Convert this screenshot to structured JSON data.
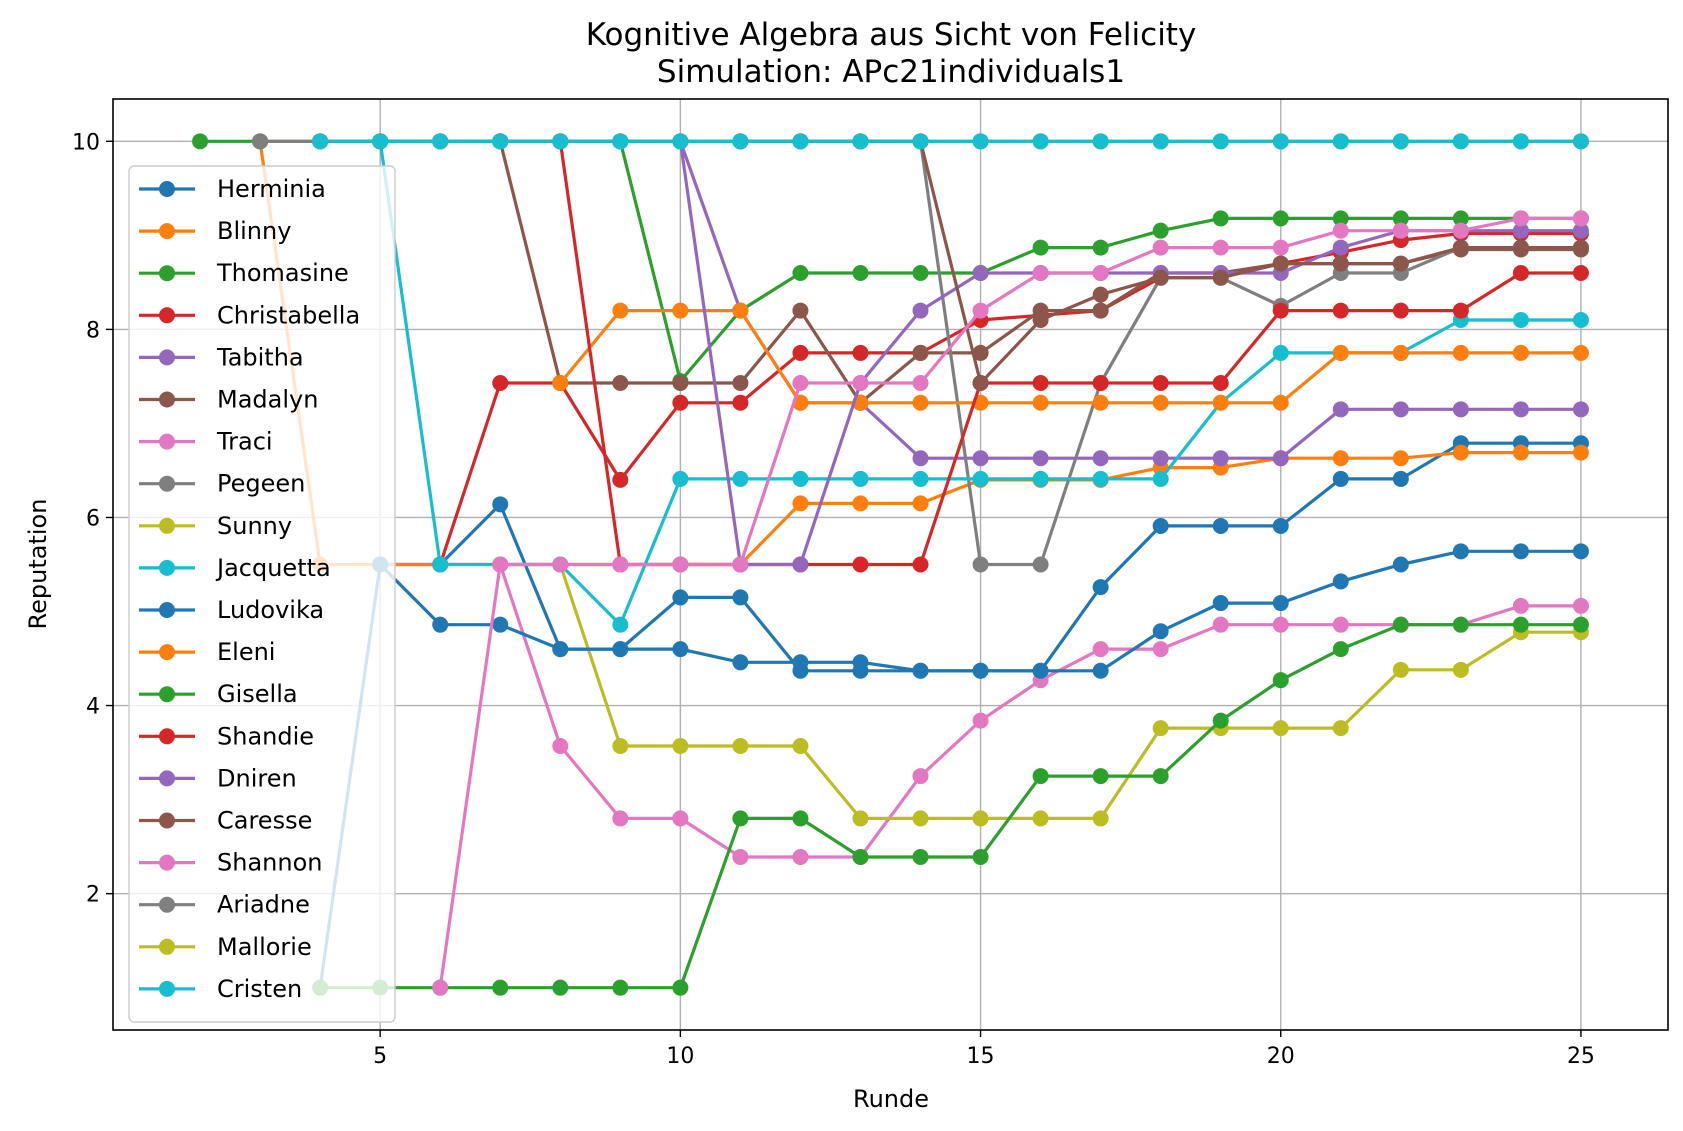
{
  "chart_data": {
    "type": "line",
    "title": "Kognitive Algebra aus Sicht von Felicity",
    "subtitle": "Simulation: APc21individuals1",
    "xlabel": "Runde",
    "ylabel": "Reputation",
    "xlim": [
      0.55,
      26.45
    ],
    "ylim": [
      0.55,
      10.45
    ],
    "xticks": [
      "5",
      "10",
      "15",
      "20",
      "25"
    ],
    "yticks": [
      "2",
      "4",
      "6",
      "8",
      "10"
    ],
    "grid": true,
    "legend_position": "left",
    "series": [
      {
        "name": "Herminia",
        "color": "#1f77b4",
        "x": [
          4,
          5,
          6,
          7,
          8,
          9,
          10,
          11,
          12,
          13,
          14,
          15,
          16,
          17,
          18,
          19,
          20,
          21,
          22,
          23,
          24,
          25
        ],
        "values": [
          1,
          5.5,
          5.5,
          6.14,
          4.6,
          4.6,
          5.15,
          5.15,
          4.37,
          4.37,
          4.37,
          4.37,
          4.37,
          5.26,
          5.91,
          5.91,
          5.91,
          6.41,
          6.41,
          6.79,
          6.79,
          6.79
        ]
      },
      {
        "name": "Blinny",
        "color": "#ff7f0e",
        "x": [
          3,
          4,
          5,
          6,
          7,
          8,
          9,
          10,
          11,
          12,
          13,
          14,
          15,
          16,
          17,
          18,
          19,
          20,
          21,
          22,
          23,
          24,
          25
        ],
        "values": [
          10,
          5.5,
          5.5,
          5.5,
          5.5,
          5.5,
          5.5,
          5.5,
          5.5,
          6.15,
          6.15,
          6.15,
          6.4,
          6.4,
          6.4,
          6.53,
          6.53,
          6.63,
          6.63,
          6.63,
          6.69,
          6.69,
          6.69
        ]
      },
      {
        "name": "Thomasine",
        "color": "#2ca02c",
        "x": [
          2,
          3,
          4,
          5,
          6,
          7,
          8,
          9,
          10,
          11,
          12,
          13,
          14,
          15,
          16,
          17,
          18,
          19,
          20,
          21,
          22,
          23,
          24,
          25
        ],
        "values": [
          10,
          10,
          10,
          10,
          10,
          10,
          10,
          10,
          7.45,
          8.2,
          8.6,
          8.6,
          8.6,
          8.6,
          8.87,
          8.87,
          9.05,
          9.18,
          9.18,
          9.18,
          9.18,
          9.18,
          9.18,
          9.18
        ]
      },
      {
        "name": "Christabella",
        "color": "#d62728",
        "x": [
          6,
          7,
          8,
          9,
          10,
          11,
          12,
          13,
          14,
          15,
          16,
          17,
          18,
          19,
          20,
          21,
          22,
          23,
          24,
          25
        ],
        "values": [
          5.5,
          7.43,
          7.43,
          6.4,
          7.22,
          7.22,
          7.75,
          7.75,
          7.75,
          8.1,
          8.15,
          8.2,
          8.55,
          8.55,
          8.7,
          8.82,
          8.95,
          9.02,
          9.02,
          9.02
        ]
      },
      {
        "name": "Tabitha",
        "color": "#9467bd",
        "x": [
          9,
          10,
          11,
          12,
          13,
          14,
          15,
          16,
          17,
          18,
          19,
          20,
          21,
          22,
          23,
          24,
          25
        ],
        "values": [
          10,
          10,
          8.2,
          7.22,
          7.22,
          6.63,
          6.63,
          6.63,
          6.63,
          6.63,
          6.63,
          6.63,
          7.15,
          7.15,
          7.15,
          7.15,
          7.15
        ]
      },
      {
        "name": "Madalyn",
        "color": "#8c564b",
        "x": [
          5,
          6,
          7,
          8,
          9,
          10,
          11,
          12,
          13,
          14,
          15,
          16,
          17,
          18,
          19,
          20,
          21,
          22,
          23,
          24,
          25
        ],
        "values": [
          10,
          10,
          10,
          7.43,
          7.43,
          7.43,
          7.43,
          8.2,
          7.22,
          7.75,
          7.75,
          8.2,
          8.2,
          8.6,
          8.6,
          8.7,
          8.7,
          8.7,
          8.85,
          8.85,
          8.85
        ]
      },
      {
        "name": "Traci",
        "color": "#e377c2",
        "x": [
          7,
          8,
          9,
          10,
          11,
          12,
          13,
          14,
          15,
          16,
          17,
          18,
          19,
          20,
          21,
          22,
          23,
          24,
          25
        ],
        "values": [
          5.5,
          3.57,
          2.8,
          2.8,
          2.39,
          2.39,
          2.39,
          3.25,
          3.84,
          4.27,
          4.6,
          4.6,
          4.86,
          4.86,
          4.86,
          4.86,
          4.86,
          5.06,
          5.06
        ]
      },
      {
        "name": "Pegeen",
        "color": "#7f7f7f",
        "x": [
          11,
          12,
          13,
          14,
          15,
          16,
          17,
          18,
          19,
          20,
          21,
          22,
          23,
          24,
          25
        ],
        "values": [
          10,
          10,
          10,
          10,
          5.5,
          5.5,
          7.43,
          8.55,
          8.55,
          8.25,
          8.6,
          8.6,
          8.87,
          8.87,
          8.87
        ]
      },
      {
        "name": "Sunny",
        "color": "#bcbd22",
        "x": [
          8,
          9,
          10,
          11,
          12,
          13,
          14,
          15,
          16,
          17,
          18,
          19,
          20,
          21,
          22,
          23,
          24,
          25
        ],
        "values": [
          5.5,
          3.57,
          3.57,
          3.57,
          3.57,
          2.8,
          2.8,
          2.8,
          2.8,
          2.8,
          3.76,
          3.76,
          3.76,
          3.76,
          4.38,
          4.38,
          4.78,
          4.78
        ]
      },
      {
        "name": "Jacquetta",
        "color": "#17becf",
        "x": [
          5,
          6,
          7,
          8,
          9,
          10,
          11,
          12,
          13,
          14,
          15,
          16,
          17,
          18,
          19,
          20,
          21,
          22,
          23,
          24,
          25
        ],
        "values": [
          10,
          5.5,
          5.5,
          5.5,
          4.86,
          6.41,
          6.41,
          6.41,
          6.41,
          6.41,
          6.41,
          6.41,
          6.41,
          6.41,
          7.22,
          7.75,
          7.75,
          7.75,
          8.1,
          8.1,
          8.1
        ]
      },
      {
        "name": "Ludovika",
        "color": "#1f77b4",
        "x": [
          5,
          6,
          7,
          8,
          9,
          10,
          11,
          12,
          13,
          14,
          15,
          16,
          17,
          18,
          19,
          20,
          21,
          22,
          23,
          24,
          25
        ],
        "values": [
          5.5,
          4.86,
          4.86,
          4.6,
          4.6,
          4.6,
          4.46,
          4.46,
          4.46,
          4.37,
          4.37,
          4.37,
          4.37,
          4.79,
          5.09,
          5.09,
          5.32,
          5.5,
          5.64,
          5.64,
          5.64
        ]
      },
      {
        "name": "Eleni",
        "color": "#ff7f0e",
        "x": [
          8,
          9,
          10,
          11,
          12,
          13,
          14,
          15,
          16,
          17,
          18,
          19,
          20,
          21,
          22,
          23,
          24,
          25
        ],
        "values": [
          7.43,
          8.2,
          8.2,
          8.2,
          7.22,
          7.22,
          7.22,
          7.22,
          7.22,
          7.22,
          7.22,
          7.22,
          7.22,
          7.75,
          7.75,
          7.75,
          7.75,
          7.75
        ]
      },
      {
        "name": "Gisella",
        "color": "#2ca02c",
        "x": [
          4,
          5,
          6,
          7,
          8,
          9,
          10,
          11,
          12,
          13,
          14,
          15,
          16,
          17,
          18,
          19,
          20,
          21,
          22,
          23,
          24,
          25
        ],
        "values": [
          1,
          1,
          1,
          1,
          1,
          1,
          1,
          2.8,
          2.8,
          2.39,
          2.39,
          2.39,
          3.25,
          3.25,
          3.25,
          3.84,
          4.27,
          4.6,
          4.86,
          4.86,
          4.86,
          4.86
        ]
      },
      {
        "name": "Shandie",
        "color": "#d62728",
        "x": [
          4,
          5,
          6,
          7,
          8,
          9,
          10,
          11,
          12,
          13,
          14,
          15,
          16,
          17,
          18,
          19,
          20,
          21,
          22,
          23,
          24,
          25
        ],
        "values": [
          10,
          10,
          10,
          10,
          10,
          5.5,
          5.5,
          5.5,
          5.5,
          5.5,
          5.5,
          7.43,
          7.43,
          7.43,
          7.43,
          7.43,
          8.2,
          8.2,
          8.2,
          8.2,
          8.6,
          8.6
        ]
      },
      {
        "name": "Dniren",
        "color": "#9467bd",
        "x": [
          7,
          8,
          9,
          10,
          11,
          12,
          13,
          14,
          15,
          16,
          17,
          18,
          19,
          20,
          21,
          22,
          23,
          24,
          25
        ],
        "values": [
          10,
          10,
          10,
          10,
          5.5,
          5.5,
          7.43,
          8.2,
          8.6,
          8.6,
          8.6,
          8.6,
          8.6,
          8.6,
          8.87,
          9.05,
          9.05,
          9.05,
          9.05
        ]
      },
      {
        "name": "Caresse",
        "color": "#8c564b",
        "x": [
          7,
          8,
          9,
          10,
          11,
          12,
          13,
          14,
          15,
          16,
          17,
          18,
          19,
          20,
          21,
          22,
          23,
          24,
          25
        ],
        "values": [
          10,
          10,
          10,
          10,
          10,
          10,
          10,
          10,
          7.43,
          8.1,
          8.37,
          8.55,
          8.55,
          8.7,
          8.7,
          8.7,
          8.87,
          8.87,
          8.87
        ]
      },
      {
        "name": "Shannon",
        "color": "#e377c2",
        "x": [
          6,
          7,
          8,
          9,
          10,
          11,
          12,
          13,
          14,
          15,
          16,
          17,
          18,
          19,
          20,
          21,
          22,
          23,
          24,
          25
        ],
        "values": [
          1,
          5.5,
          5.5,
          5.5,
          5.5,
          5.5,
          7.43,
          7.43,
          7.43,
          8.2,
          8.6,
          8.6,
          8.87,
          8.87,
          8.87,
          9.05,
          9.05,
          9.05,
          9.18,
          9.18
        ]
      },
      {
        "name": "Ariadne",
        "color": "#7f7f7f",
        "x": [
          3,
          4,
          5,
          6,
          7,
          8,
          9,
          10,
          11,
          12,
          13,
          14,
          15,
          16,
          17,
          18,
          19,
          20,
          21,
          22,
          23,
          24,
          25
        ],
        "values": [
          10,
          10,
          10,
          10,
          10,
          10,
          10,
          10,
          10,
          10,
          10,
          10,
          10,
          10,
          10,
          10,
          10,
          10,
          10,
          10,
          10,
          10,
          10
        ]
      },
      {
        "name": "Mallorie",
        "color": "#bcbd22",
        "x": [
          15,
          16,
          17,
          18,
          19,
          20,
          21,
          22,
          23,
          24,
          25
        ],
        "values": [
          10,
          10,
          10,
          10,
          10,
          10,
          10,
          10,
          10,
          10,
          10
        ]
      },
      {
        "name": "Cristen",
        "color": "#17becf",
        "x": [
          4,
          5,
          6,
          7,
          8,
          9,
          10,
          11,
          12,
          13,
          14,
          15,
          16,
          17,
          18,
          19,
          20,
          21,
          22,
          23,
          24,
          25
        ],
        "values": [
          10,
          10,
          10,
          10,
          10,
          10,
          10,
          10,
          10,
          10,
          10,
          10,
          10,
          10,
          10,
          10,
          10,
          10,
          10,
          10,
          10,
          10
        ]
      }
    ]
  }
}
